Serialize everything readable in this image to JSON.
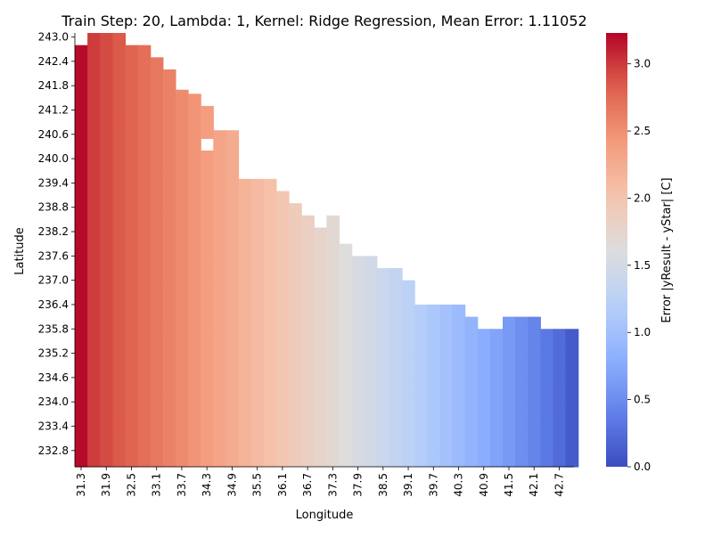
{
  "chart_data": {
    "type": "heatmap",
    "title": "Train Step: 20, Lambda: 1, Kernel: Ridge Regression, Mean Error: 1.11052",
    "xlabel": "Longitude",
    "ylabel": "Latitude",
    "x_tick_labels": [
      "31.3",
      "31.9",
      "32.5",
      "33.1",
      "33.7",
      "34.3",
      "34.9",
      "35.5",
      "36.1",
      "36.7",
      "37.3",
      "37.9",
      "38.5",
      "39.1",
      "39.7",
      "40.3",
      "40.9",
      "41.5",
      "42.1",
      "42.7"
    ],
    "y_tick_labels": [
      "243.0",
      "242.4",
      "241.8",
      "241.2",
      "240.6",
      "240.0",
      "239.4",
      "238.8",
      "238.2",
      "237.6",
      "237.0",
      "236.4",
      "235.8",
      "235.2",
      "234.6",
      "234.0",
      "233.4",
      "232.8"
    ],
    "x_range": [
      31.3,
      43.2
    ],
    "y_range": [
      232.4,
      243.1
    ],
    "col_step": 0.3,
    "row_step": 0.3,
    "column_top_latitudes": [
      242.8,
      243.1,
      243.1,
      243.1,
      242.8,
      242.8,
      242.5,
      242.2,
      241.9,
      241.6,
      241.3,
      240.7,
      240.7,
      239.5,
      239.5,
      239.5,
      239.2,
      238.9,
      238.6,
      238.3,
      238.6,
      237.9,
      237.6,
      237.6,
      237.3,
      237.3,
      237.0,
      236.4,
      236.4,
      236.4,
      236.4,
      236.1,
      235.8,
      235.8,
      236.1,
      236.1,
      236.1,
      235.8,
      235.8,
      235.8
    ],
    "value_range": [
      0.0,
      3.23
    ],
    "missing_cells": [
      {
        "longitude": 33.7,
        "latitude": 241.6
      },
      {
        "longitude": 34.3,
        "latitude": 240.1
      }
    ],
    "error_profile_note": "",
    "colorbar": {
      "label": "Error |yResult - yStar| [C]",
      "min": 0.0,
      "max": 3.23,
      "ticks": [
        "0.0",
        "0.5",
        "1.0",
        "1.5",
        "2.0",
        "2.5",
        "3.0"
      ],
      "tick_values": [
        0.0,
        0.5,
        1.0,
        1.5,
        2.0,
        2.5,
        3.0
      ]
    },
    "colormap": "coolwarm",
    "colors": {
      "low": "#3b4cc0",
      "mid": "#dddddd",
      "high": "#b40426"
    }
  }
}
